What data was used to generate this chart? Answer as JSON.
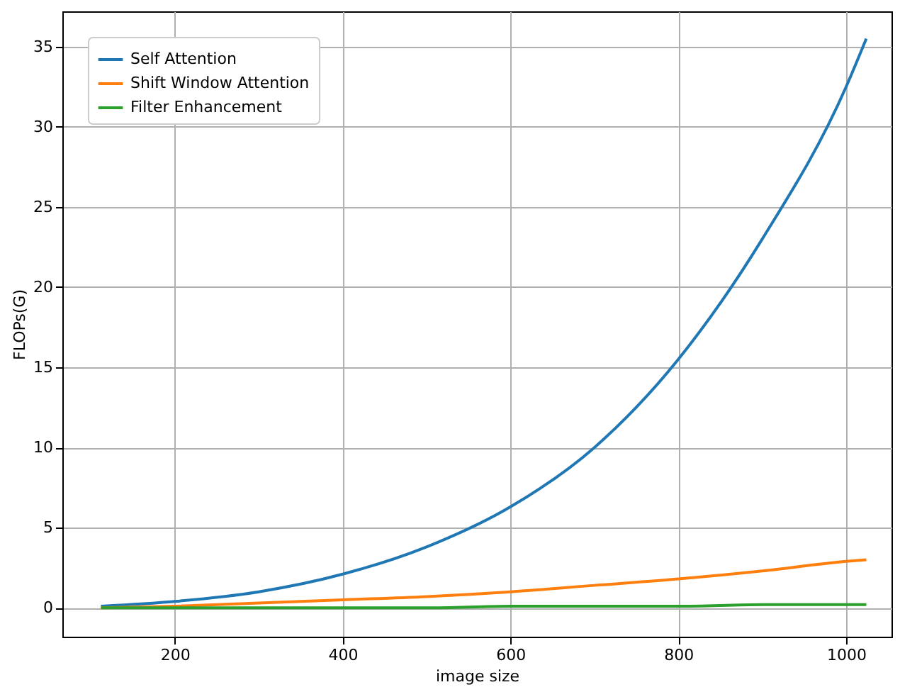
{
  "chart_data": {
    "type": "line",
    "xlabel": "image size",
    "ylabel": "FLOPs(G)",
    "x": [
      112,
      200,
      300,
      400,
      500,
      600,
      700,
      800,
      900,
      1000,
      1024
    ],
    "series": [
      {
        "name": "Self Attention",
        "color": "#1f77b4",
        "values": [
          0.1,
          0.4,
          1.0,
          2.1,
          3.8,
          6.3,
          10.0,
          15.5,
          23.0,
          32.5,
          35.5
        ]
      },
      {
        "name": "Shift Window Attention",
        "color": "#ff7f0e",
        "values": [
          0.0,
          0.1,
          0.3,
          0.5,
          0.7,
          1.0,
          1.4,
          1.8,
          2.3,
          2.9,
          3.0
        ]
      },
      {
        "name": "Filter Enhancement",
        "color": "#2ca02c",
        "values": [
          0.0,
          0.0,
          0.0,
          0.0,
          0.0,
          0.1,
          0.1,
          0.1,
          0.2,
          0.2,
          0.2
        ]
      }
    ],
    "xlim": [
      66,
      1054
    ],
    "ylim": [
      -1.8,
      37.2
    ],
    "xticks": [
      200,
      400,
      600,
      800,
      1000
    ],
    "yticks": [
      0,
      5,
      10,
      15,
      20,
      25,
      30,
      35
    ],
    "grid": true,
    "legend": "top left",
    "marker": "none",
    "line_style": "solid"
  }
}
